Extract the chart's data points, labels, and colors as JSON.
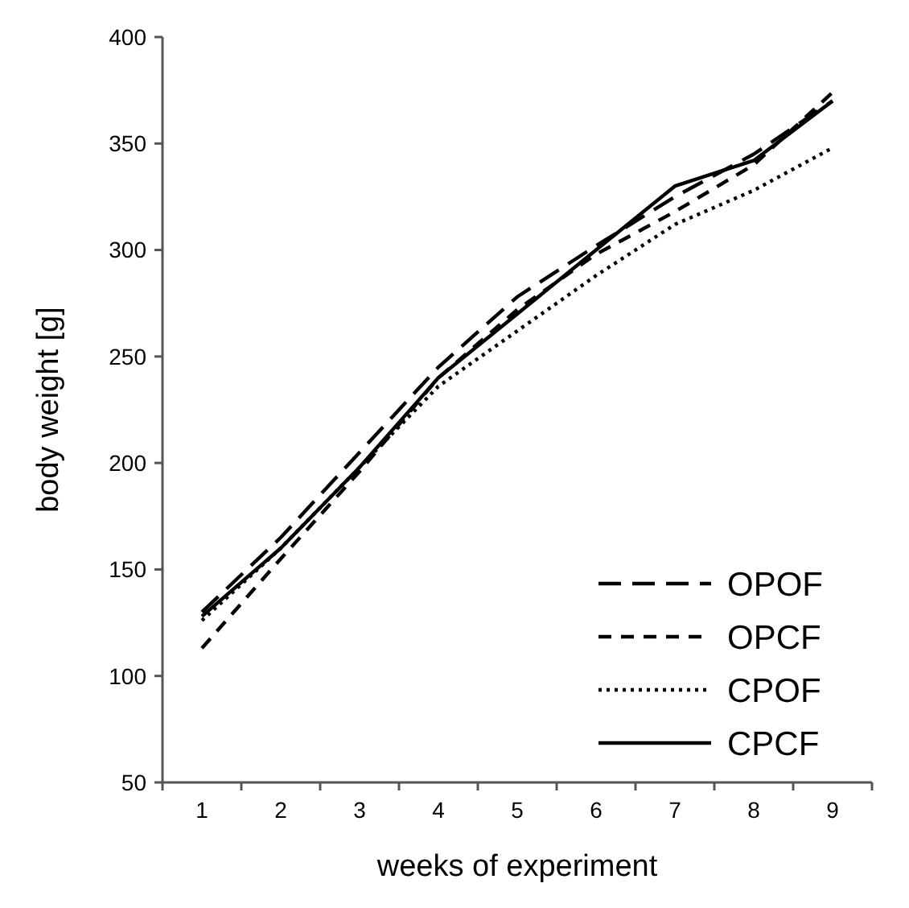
{
  "chart_data": {
    "type": "line",
    "xlabel": "weeks of experiment",
    "ylabel": "body weight [g]",
    "categories": [
      "1",
      "2",
      "3",
      "4",
      "5",
      "6",
      "7",
      "8",
      "9"
    ],
    "ylim": [
      50,
      400
    ],
    "yticks": [
      50,
      100,
      150,
      200,
      250,
      300,
      350,
      400
    ],
    "grid": false,
    "legend": "bottom right",
    "marker": "none",
    "series": [
      {
        "name": "OPOF",
        "color": "#000000",
        "line_style": "dashed",
        "values": [
          130,
          165,
          205,
          245,
          278,
          302,
          325,
          345,
          370
        ]
      },
      {
        "name": "OPCF",
        "color": "#000000",
        "line_style": "dashed",
        "values": [
          113,
          155,
          196,
          240,
          272,
          298,
          318,
          340,
          374
        ]
      },
      {
        "name": "CPOF",
        "color": "#000000",
        "line_style": "dotted",
        "values": [
          126,
          160,
          198,
          236,
          262,
          288,
          312,
          328,
          348
        ]
      },
      {
        "name": "CPCF",
        "color": "#000000",
        "line_style": "solid",
        "values": [
          128,
          160,
          198,
          240,
          270,
          300,
          330,
          342,
          370
        ]
      }
    ]
  }
}
